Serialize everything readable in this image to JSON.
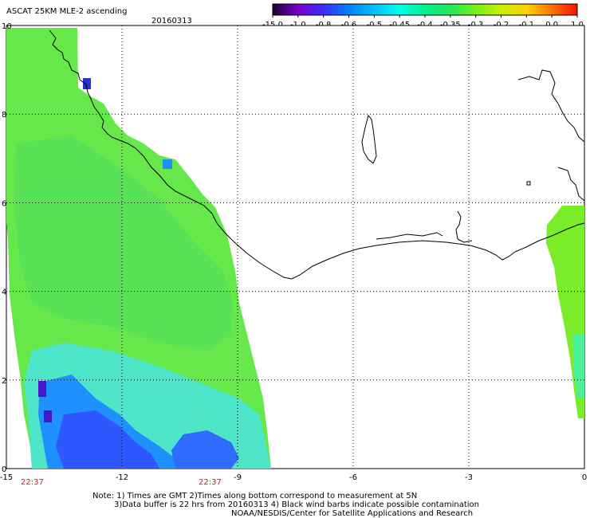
{
  "title": "ASCAT 25KM MLE-2 ascending",
  "date": "20160313",
  "colorbar": {
    "labels": [
      "-15.0",
      "-1.0",
      "-0.8",
      "-0.6",
      "-0.5",
      "-0.45",
      "-0.4",
      "-0.35",
      "-0.3",
      "-0.2",
      "-0.1",
      "0.0",
      "1.0"
    ],
    "colors": [
      "#1a0030",
      "#7b00c8",
      "#3a2dff",
      "#0080ff",
      "#00c0ff",
      "#00ffee",
      "#00f08a",
      "#22e85a",
      "#78ef1c",
      "#c8f000",
      "#ffd000",
      "#ff7000",
      "#ff1000"
    ]
  },
  "axes": {
    "x_ticks": [
      "-15",
      "-12",
      "-9",
      "-6",
      "-3",
      "0"
    ],
    "y_ticks": [
      "10",
      "8",
      "6",
      "4",
      "2",
      "0"
    ]
  },
  "time_labels": [
    "22:37",
    "22:37"
  ],
  "notes": [
    "Note: 1) Times are GMT 2)Times along bottom correspond to measurement at 5N",
    "3)Data buffer is 22 hrs from 20160313 4) Black wind barbs indicate possible contamination",
    "NOAA/NESDIS/Center for Satellite Applications and Research"
  ]
}
